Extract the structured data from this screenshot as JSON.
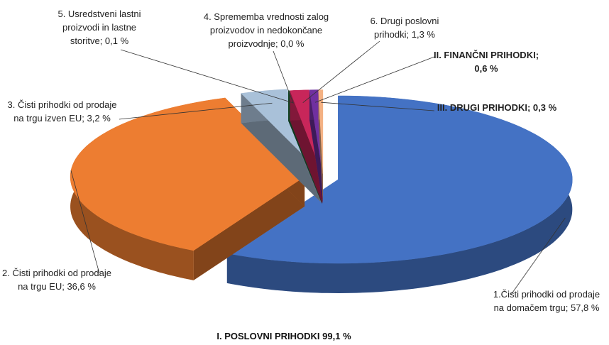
{
  "chart_data": {
    "type": "pie3d",
    "labels": [
      "1.Čisti prihodki od prodaje na domačem trgu; 57,8 %",
      "2. Čisti prihodki od prodaje na trgu EU; 36,6 %",
      "3. Čisti prihodki od prodaje na trgu izven EU; 3,2 %",
      "4. Sprememba vrednosti zalog proizvodov in nedokončane proizvodnje; 0,0 %",
      "5. Usredstveni lastni proizvodi in lastne storitve; 0,1 %",
      "6. Drugi poslovni prihodki; 1,3 %",
      "II. FINANČNI PRIHODKI; 0,6 %",
      "III. DRUGI PRIHODKI; 0,3 %"
    ],
    "values": [
      57.8,
      36.6,
      3.2,
      0.0,
      0.1,
      1.3,
      0.6,
      0.3
    ],
    "colors": [
      "#4472c4",
      "#ed7d31",
      "#a9c1d9",
      "#1f5a5a",
      "#1e6b3a",
      "#c8265a",
      "#7030a0",
      "#f4b183"
    ],
    "annotation": "I. POSLOVNI PRIHODKI 99,1 %"
  }
}
